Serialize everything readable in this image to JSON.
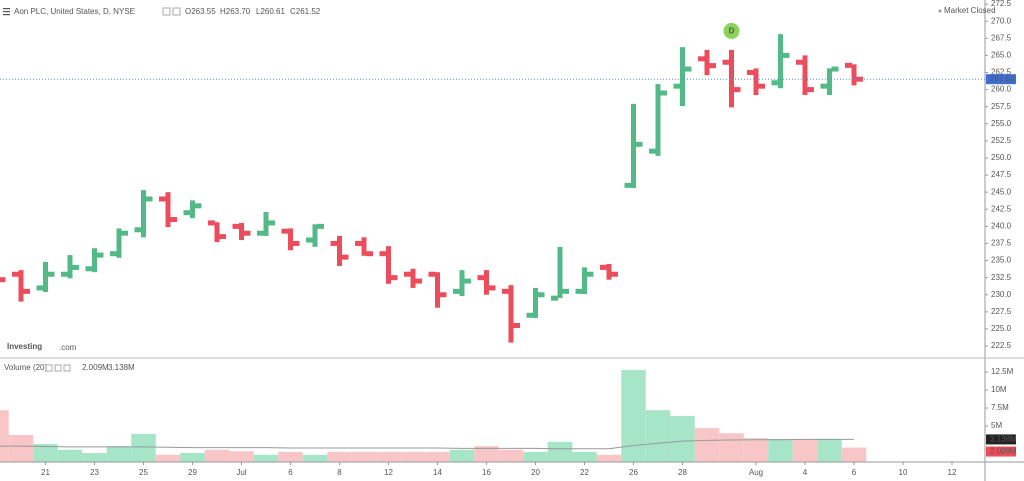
{
  "chart_data": {
    "type": "ohlc",
    "title": "Aon PLC, United States, D, NYSE",
    "legend_values": [
      "O263.55",
      "H263.70",
      "L260.61",
      "C261.52"
    ],
    "status": "Market Closed",
    "brand": "Investing",
    "brand_suffix": ".com",
    "annotations": [
      {
        "text": "D",
        "category": 30
      }
    ],
    "categories": [
      null,
      null,
      "21",
      null,
      "23",
      null,
      "25",
      null,
      "29",
      null,
      "Jul",
      null,
      "6",
      null,
      "8",
      null,
      "12",
      null,
      "14",
      null,
      "16",
      null,
      "20",
      null,
      "22",
      null,
      "26",
      null,
      "28",
      null,
      null,
      "Aug",
      null,
      "4",
      null,
      "6",
      null,
      "10",
      null,
      "12"
    ],
    "open": [
      233.5,
      233,
      231,
      233,
      233.8,
      236,
      239.5,
      244,
      242,
      240.5,
      240,
      239,
      239.3,
      238,
      237.5,
      237.5,
      236,
      233,
      233,
      230.5,
      232.5,
      230.5,
      227,
      229.5,
      230.5,
      234,
      246,
      251,
      260.5,
      264.5,
      264,
      262.5,
      261,
      264,
      260.5,
      263.55,
      null,
      null,
      null,
      null
    ],
    "high": [
      234,
      233.6,
      234.8,
      235.8,
      236.8,
      239.7,
      245.3,
      245,
      243.8,
      240.6,
      240.5,
      242.1,
      239.7,
      240.3,
      238.6,
      238.4,
      237.1,
      233.8,
      233.3,
      233.6,
      233.6,
      231.4,
      231,
      237,
      234,
      234.5,
      257.9,
      260.8,
      266.2,
      265.8,
      265.8,
      263.1,
      268.1,
      265,
      263.1,
      263.7,
      null,
      null,
      null,
      null
    ],
    "low": [
      231.5,
      229,
      230.4,
      232.4,
      233.3,
      235.4,
      238.4,
      239.9,
      241.2,
      237.7,
      238,
      238.6,
      236.5,
      237,
      234.2,
      235.7,
      231.6,
      231,
      228.1,
      229.8,
      230,
      223,
      226.6,
      229.5,
      230.1,
      232.2,
      245.6,
      250.3,
      257.6,
      262.1,
      257.4,
      259.2,
      260.2,
      259.2,
      259.2,
      260.61,
      null,
      null,
      null,
      null
    ],
    "close": [
      232.2,
      230.5,
      233,
      234,
      235.8,
      239,
      244,
      241,
      243,
      238.5,
      239,
      240.5,
      237.5,
      240,
      235.5,
      236,
      232.5,
      232,
      230,
      232,
      231,
      225.5,
      230,
      230.5,
      233,
      233,
      252,
      259.5,
      263,
      263.5,
      260,
      260.5,
      265,
      260,
      263,
      261.52,
      null,
      null,
      null,
      null
    ],
    "up_color": "#53b987",
    "down_color": "#eb4d5c",
    "ylim": [
      220.75,
      273.1
    ],
    "yticks": [
      222.5,
      {
        "value": 225,
        "label": "225.0"
      },
      227.5,
      {
        "value": 230,
        "label": "230.0"
      },
      232.5,
      {
        "value": 235,
        "label": "235.0"
      },
      237.5,
      {
        "value": 240,
        "label": "240.0"
      },
      242.5,
      {
        "value": 245,
        "label": "245.0"
      },
      247.5,
      {
        "value": 250,
        "label": "250.0"
      },
      252.5,
      {
        "value": 255,
        "label": "255.0"
      },
      257.5,
      {
        "value": 260,
        "label": "260.0"
      },
      262.5,
      {
        "value": 265,
        "label": "265.0"
      },
      267.5,
      {
        "value": 270,
        "label": "270.0"
      },
      272.5
    ],
    "volume_title": "Volume (20)",
    "volume": [
      7.2,
      3.75,
      2.5,
      1.7,
      1.25,
      2.2,
      3.9,
      1.0,
      1.25,
      1.7,
      1.5,
      1.0,
      1.4,
      1.0,
      1.4,
      1.4,
      1.4,
      1.4,
      1.4,
      1.7,
      2.2,
      1.7,
      1.4,
      2.8,
      1.4,
      1.0,
      12.8,
      7.2,
      6.4,
      4.7,
      4.0,
      3.3,
      3.2,
      3.2,
      3.2,
      2.009,
      null,
      null,
      null,
      null
    ],
    "volume_value_labels": [
      null,
      null,
      null,
      null,
      null,
      null,
      null,
      null,
      null,
      null,
      null,
      null,
      null,
      null,
      null,
      null,
      null,
      null,
      null,
      null,
      null,
      null,
      null,
      null,
      null,
      null,
      null,
      null,
      null,
      null,
      null,
      null,
      null,
      null,
      null,
      "2.009M",
      null,
      null,
      null,
      null
    ],
    "volume_ma": [
      2.2,
      2.2,
      2.15,
      2.1,
      2.1,
      2.1,
      2.1,
      2.05,
      2.0,
      2.0,
      2.0,
      2.0,
      1.95,
      1.95,
      1.95,
      1.95,
      1.95,
      1.95,
      1.95,
      1.9,
      1.9,
      1.9,
      1.9,
      1.85,
      1.85,
      1.85,
      2.3,
      2.6,
      2.9,
      3.0,
      3.05,
      3.1,
      3.1,
      3.15,
      3.15,
      3.138,
      null,
      null,
      null,
      null
    ],
    "volume_ma_value_labels": [
      null,
      null,
      null,
      null,
      null,
      null,
      null,
      null,
      null,
      null,
      null,
      null,
      null,
      null,
      null,
      null,
      null,
      null,
      null,
      null,
      null,
      null,
      null,
      null,
      null,
      null,
      null,
      null,
      null,
      null,
      null,
      null,
      null,
      null,
      null,
      "3.138M",
      null,
      null,
      null,
      null
    ],
    "volume_up_color": "#a6e5c8",
    "volume_down_color": "#f8c6c6",
    "volume_ma_color": "#999999",
    "volume_ylim": [
      0,
      13.9
    ],
    "volume_yticks": [
      {
        "value": 5,
        "label": "5M"
      },
      {
        "value": 7.5,
        "label": "7.5M"
      },
      {
        "value": 10,
        "label": "10M"
      },
      {
        "value": 12.5,
        "label": "12.5M"
      }
    ]
  }
}
